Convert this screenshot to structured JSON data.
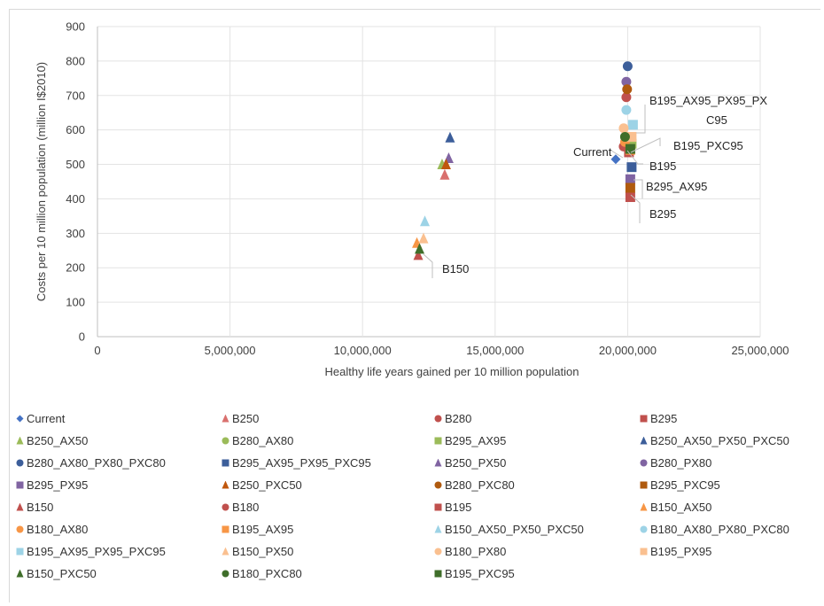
{
  "chart_data": {
    "type": "scatter",
    "title": "",
    "xlabel": "Healthy life years gained per 10 million population",
    "ylabel": "Costs per 10 million population (million I$2010)",
    "xlim": [
      0,
      25000000
    ],
    "ylim": [
      0,
      900
    ],
    "x_ticks": [
      0,
      5000000,
      10000000,
      15000000,
      20000000,
      25000000
    ],
    "x_tick_labels": [
      "0",
      "5,000,000",
      "10,000,000",
      "15,000,000",
      "20,000,000",
      "25,000,000"
    ],
    "y_ticks": [
      0,
      100,
      200,
      300,
      400,
      500,
      600,
      700,
      800,
      900
    ],
    "y_tick_labels": [
      "0",
      "100",
      "200",
      "300",
      "400",
      "500",
      "600",
      "700",
      "800",
      "900"
    ],
    "grid": true,
    "legend_position": "bottom",
    "series": [
      {
        "name": "Current",
        "marker": "diamond",
        "color": "#4472C4",
        "x": 19550000,
        "y": 515
      },
      {
        "name": "B250",
        "marker": "triangle",
        "color": "#D9706E",
        "x": 13100000,
        "y": 470
      },
      {
        "name": "B280",
        "marker": "circle",
        "color": "#C0504D",
        "x": 19950000,
        "y": 695
      },
      {
        "name": "B295",
        "marker": "square",
        "color": "#C0504D",
        "x": 20100000,
        "y": 405
      },
      {
        "name": "B250_AX50",
        "marker": "triangle",
        "color": "#9BBB59",
        "x": 13000000,
        "y": 500
      },
      {
        "name": "B280_AX80",
        "marker": "circle",
        "color": "#9BBB59",
        "x": 19900000,
        "y": 555
      },
      {
        "name": "B295_AX95",
        "marker": "square",
        "color": "#9BBB59",
        "x": 20150000,
        "y": 560
      },
      {
        "name": "B250_AX50_PX50_PXC50",
        "marker": "triangle",
        "color": "#3C5E9A",
        "x": 13300000,
        "y": 578
      },
      {
        "name": "B280_AX80_PX80_PXC80",
        "marker": "circle",
        "color": "#3C5E9A",
        "x": 20000000,
        "y": 785
      },
      {
        "name": "B295_AX95_PX95_PXC95",
        "marker": "square",
        "color": "#3C5E9A",
        "x": 20150000,
        "y": 492
      },
      {
        "name": "B250_PX50",
        "marker": "triangle",
        "color": "#8064A2",
        "x": 13250000,
        "y": 518
      },
      {
        "name": "B280_PX80",
        "marker": "circle",
        "color": "#8064A2",
        "x": 19950000,
        "y": 740
      },
      {
        "name": "B295_PX95",
        "marker": "square",
        "color": "#8064A2",
        "x": 20100000,
        "y": 457
      },
      {
        "name": "B250_PXC50",
        "marker": "triangle",
        "color": "#C0570E",
        "x": 13150000,
        "y": 500
      },
      {
        "name": "B280_PXC80",
        "marker": "circle",
        "color": "#B05A0E",
        "x": 19980000,
        "y": 718
      },
      {
        "name": "B295_PXC95",
        "marker": "square",
        "color": "#B05A0E",
        "x": 20100000,
        "y": 432
      },
      {
        "name": "B150",
        "marker": "triangle",
        "color": "#C0504D",
        "x": 12100000,
        "y": 237
      },
      {
        "name": "B180",
        "marker": "circle",
        "color": "#C0504D",
        "x": 19850000,
        "y": 552
      },
      {
        "name": "B195",
        "marker": "square",
        "color": "#C0504D",
        "x": 20050000,
        "y": 535
      },
      {
        "name": "B150_AX50",
        "marker": "triangle",
        "color": "#F79646",
        "x": 12050000,
        "y": 272
      },
      {
        "name": "B180_AX80",
        "marker": "circle",
        "color": "#F79646",
        "x": 19900000,
        "y": 565
      },
      {
        "name": "B195_AX95",
        "marker": "square",
        "color": "#F79646",
        "x": 20100000,
        "y": 542
      },
      {
        "name": "B150_AX50_PX50_PXC50",
        "marker": "triangle",
        "color": "#9DD3E6",
        "x": 12350000,
        "y": 335
      },
      {
        "name": "B180_AX80_PX80_PXC80",
        "marker": "circle",
        "color": "#9DD3E6",
        "x": 19950000,
        "y": 658
      },
      {
        "name": "B195_AX95_PX95_PXC95",
        "marker": "square",
        "color": "#9DD3E6",
        "x": 20200000,
        "y": 615
      },
      {
        "name": "B150_PX50",
        "marker": "triangle",
        "color": "#FAC090",
        "x": 12300000,
        "y": 285
      },
      {
        "name": "B180_PX80",
        "marker": "circle",
        "color": "#FAC090",
        "x": 19850000,
        "y": 605
      },
      {
        "name": "B195_PX95",
        "marker": "square",
        "color": "#FAC090",
        "x": 20150000,
        "y": 580
      },
      {
        "name": "B150_PXC50",
        "marker": "triangle",
        "color": "#3F6E2A",
        "x": 12150000,
        "y": 255
      },
      {
        "name": "B180_PXC80",
        "marker": "circle",
        "color": "#3F6E2A",
        "x": 19900000,
        "y": 580
      },
      {
        "name": "B195_PXC95",
        "marker": "square",
        "color": "#3F6E2A",
        "x": 20100000,
        "y": 545
      }
    ],
    "annotations": [
      {
        "text": "B195_AX95_PX95_PXC95",
        "x": 20200000,
        "y": 615
      },
      {
        "text": "B195_PXC95",
        "x": 20100000,
        "y": 545
      },
      {
        "text": "Current",
        "x": 19550000,
        "y": 515
      },
      {
        "text": "B195",
        "x": 20050000,
        "y": 535
      },
      {
        "text": "B295_AX95",
        "x": 20150000,
        "y": 430
      },
      {
        "text": "B295",
        "x": 20100000,
        "y": 405
      },
      {
        "text": "B150",
        "x": 12100000,
        "y": 237
      }
    ]
  }
}
